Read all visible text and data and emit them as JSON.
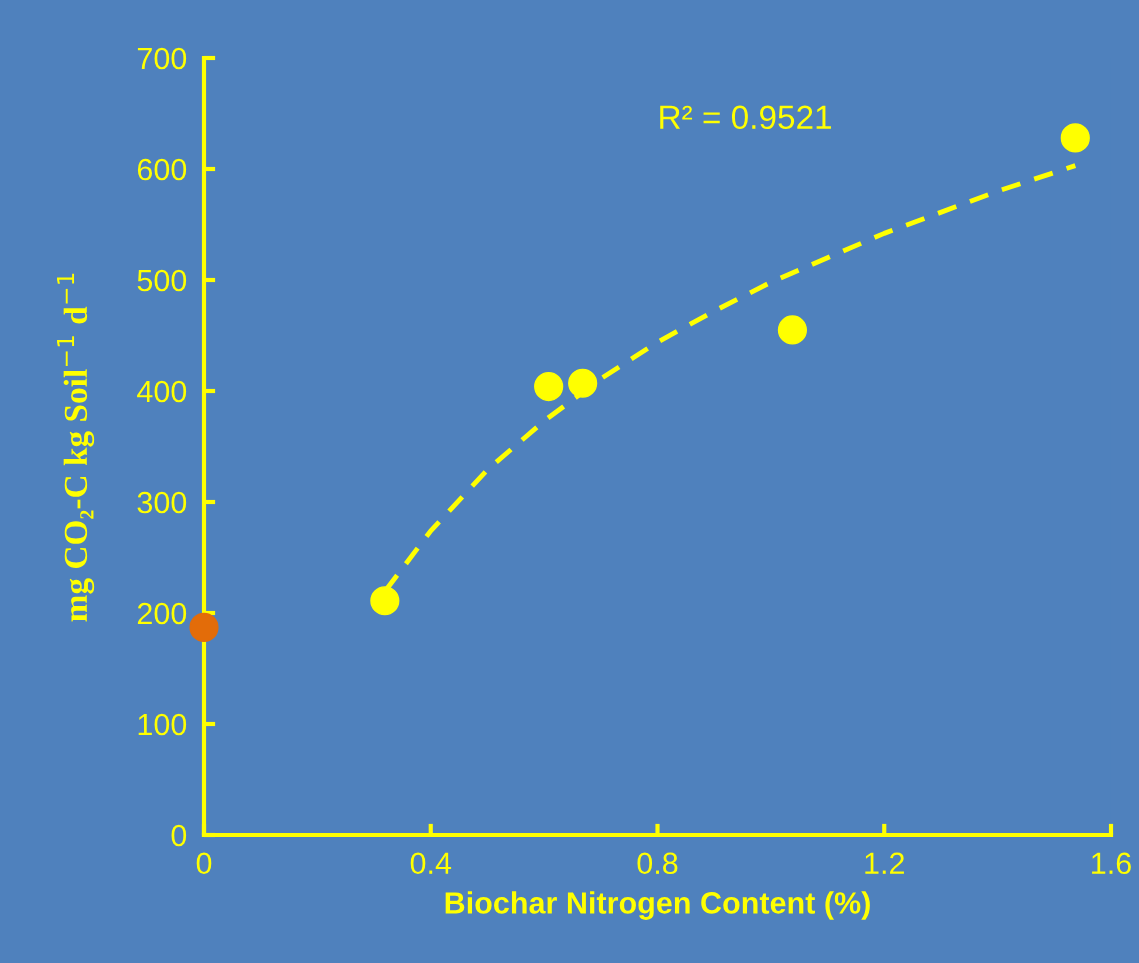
{
  "chart_data": {
    "type": "scatter",
    "xlabel": "Biochar Nitrogen Content (%)",
    "ylabel": "mg CO₂-C kg Soil$^{−1}$ d$^{−1}$",
    "annotations": [
      "R² = 0.9521"
    ],
    "xlim": [
      0,
      1.6
    ],
    "ylim": [
      0,
      700
    ],
    "xticks": [
      0,
      0.4,
      0.8,
      1.2,
      1.6
    ],
    "yticks": [
      0,
      100,
      200,
      300,
      400,
      500,
      600,
      700
    ],
    "grid": false,
    "legend": false,
    "marker": "circle",
    "series": [
      {
        "type": "line",
        "color": "#ffff00",
        "line_style": "dashed",
        "marker": "none",
        "x": [
          0.32,
          0.4,
          0.5,
          0.6,
          0.7,
          0.8,
          0.9,
          1.0,
          1.2,
          1.4,
          1.537
        ],
        "values": [
          220,
          274,
          329,
          373,
          411,
          444,
          472,
          498,
          542,
          580,
          603
        ]
      },
      {
        "color": "#ffff00",
        "x": [
          0.319,
          0.608,
          0.668,
          1.038,
          1.537
        ],
        "values": [
          211,
          404,
          407,
          455,
          628
        ]
      },
      {
        "color": "#e36c09",
        "x": [
          0
        ],
        "values": [
          187
        ]
      }
    ]
  }
}
